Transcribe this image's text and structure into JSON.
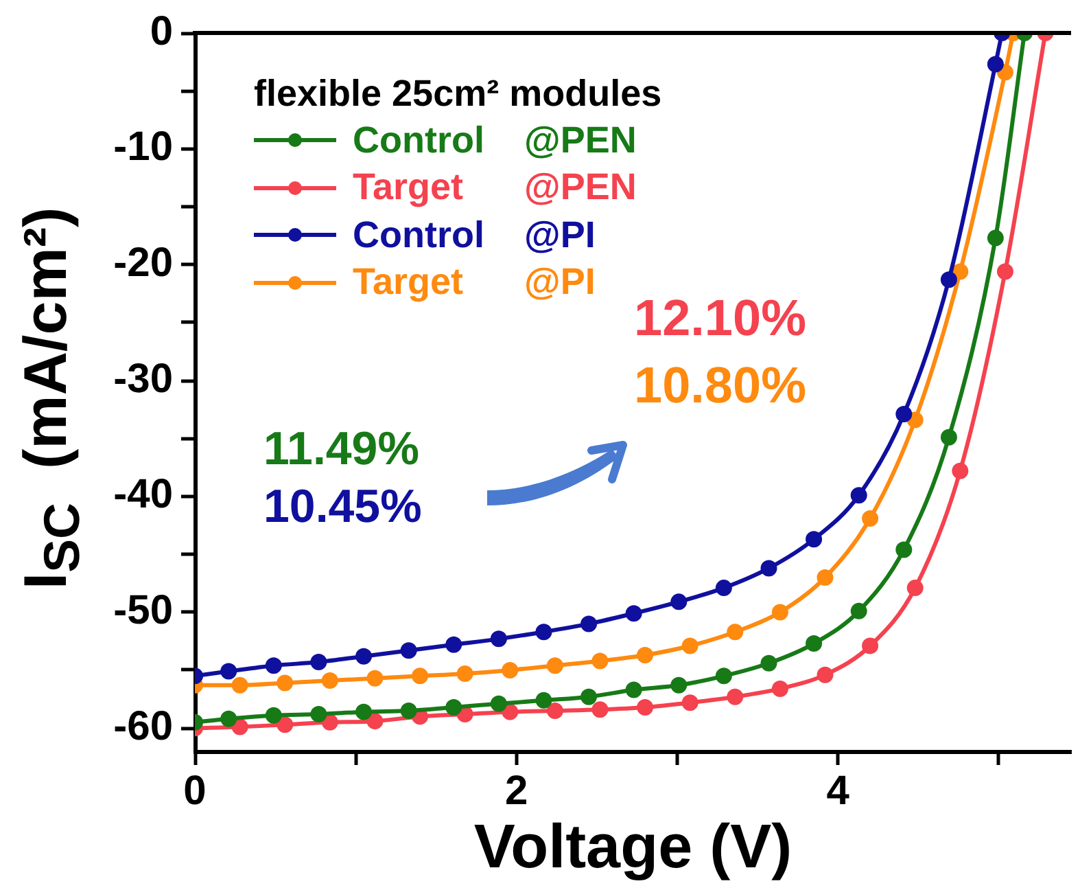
{
  "chart_data": {
    "type": "line",
    "xlabel": "Voltage (V)",
    "ylabel": "I$_{SC}$  (mA/cm²)",
    "legend_title": "flexible 25cm² modules",
    "annotations": [
      "11.49%",
      "10.45%",
      "12.10%",
      "10.80%"
    ],
    "xlim": [
      0,
      5.45
    ],
    "xticks": [
      0,
      {
        "value": 1,
        "label": null
      },
      2,
      {
        "value": 3,
        "label": null
      },
      4,
      {
        "value": 5,
        "label": null
      }
    ],
    "ylim": [
      -62,
      0
    ],
    "yticks": [
      -60,
      {
        "value": -55,
        "label": null
      },
      -50,
      {
        "value": -45,
        "label": null
      },
      -40,
      {
        "value": -35,
        "label": null
      },
      -30,
      {
        "value": -25,
        "label": null
      },
      -20,
      {
        "value": -15,
        "label": null
      },
      -10,
      {
        "value": -5,
        "label": null
      },
      0
    ],
    "grid": false,
    "legend": "top left",
    "marker": "circle",
    "line_style": "solid",
    "series": [
      {
        "name": "Control @PEN",
        "color": "#177a17",
        "x": [
          0,
          0.21,
          0.49,
          0.77,
          1.05,
          1.33,
          1.61,
          1.89,
          2.17,
          2.45,
          2.73,
          3.01,
          3.29,
          3.57,
          3.85,
          4.13,
          4.41,
          4.69,
          4.98,
          5.16
        ],
        "values": [
          -59.5,
          -59.2,
          -58.9,
          -58.8,
          -58.6,
          -58.5,
          -58.2,
          -57.9,
          -57.6,
          -57.3,
          -56.7,
          -56.3,
          -55.5,
          -54.4,
          -52.7,
          -49.9,
          -44.6,
          -34.9,
          -17.7,
          0
        ]
      },
      {
        "name": "Target @PEN",
        "color": "#f4424f",
        "x": [
          0,
          0.28,
          0.56,
          0.84,
          1.12,
          1.4,
          1.68,
          1.96,
          2.24,
          2.52,
          2.8,
          3.08,
          3.36,
          3.64,
          3.92,
          4.2,
          4.48,
          4.76,
          5.04,
          5.29
        ],
        "values": [
          -60.0,
          -59.9,
          -59.7,
          -59.5,
          -59.4,
          -59.0,
          -58.8,
          -58.6,
          -58.5,
          -58.4,
          -58.2,
          -57.8,
          -57.3,
          -56.6,
          -55.4,
          -52.9,
          -47.9,
          -37.8,
          -20.6,
          0
        ]
      },
      {
        "name": "Control @PI",
        "color": "#10109e",
        "x": [
          0,
          0.21,
          0.49,
          0.77,
          1.05,
          1.33,
          1.61,
          1.89,
          2.17,
          2.45,
          2.73,
          3.01,
          3.29,
          3.57,
          3.85,
          4.13,
          4.41,
          4.69,
          4.98,
          5.02
        ],
        "values": [
          -55.5,
          -55.1,
          -54.6,
          -54.3,
          -53.8,
          -53.3,
          -52.8,
          -52.3,
          -51.7,
          -51.0,
          -50.1,
          -49.1,
          -47.9,
          -46.2,
          -43.7,
          -39.9,
          -32.9,
          -21.3,
          -2.7,
          0
        ]
      },
      {
        "name": "Target @PI",
        "color": "#fe8a10",
        "x": [
          0,
          0.28,
          0.56,
          0.84,
          1.12,
          1.4,
          1.68,
          1.96,
          2.24,
          2.52,
          2.8,
          3.08,
          3.36,
          3.64,
          3.92,
          4.2,
          4.48,
          4.76,
          5.04,
          5.09
        ],
        "values": [
          -56.3,
          -56.3,
          -56.1,
          -55.9,
          -55.7,
          -55.5,
          -55.3,
          -55.0,
          -54.6,
          -54.2,
          -53.7,
          -52.9,
          -51.7,
          -50.0,
          -47.0,
          -41.9,
          -33.4,
          -20.6,
          -3.4,
          0
        ]
      }
    ]
  }
}
